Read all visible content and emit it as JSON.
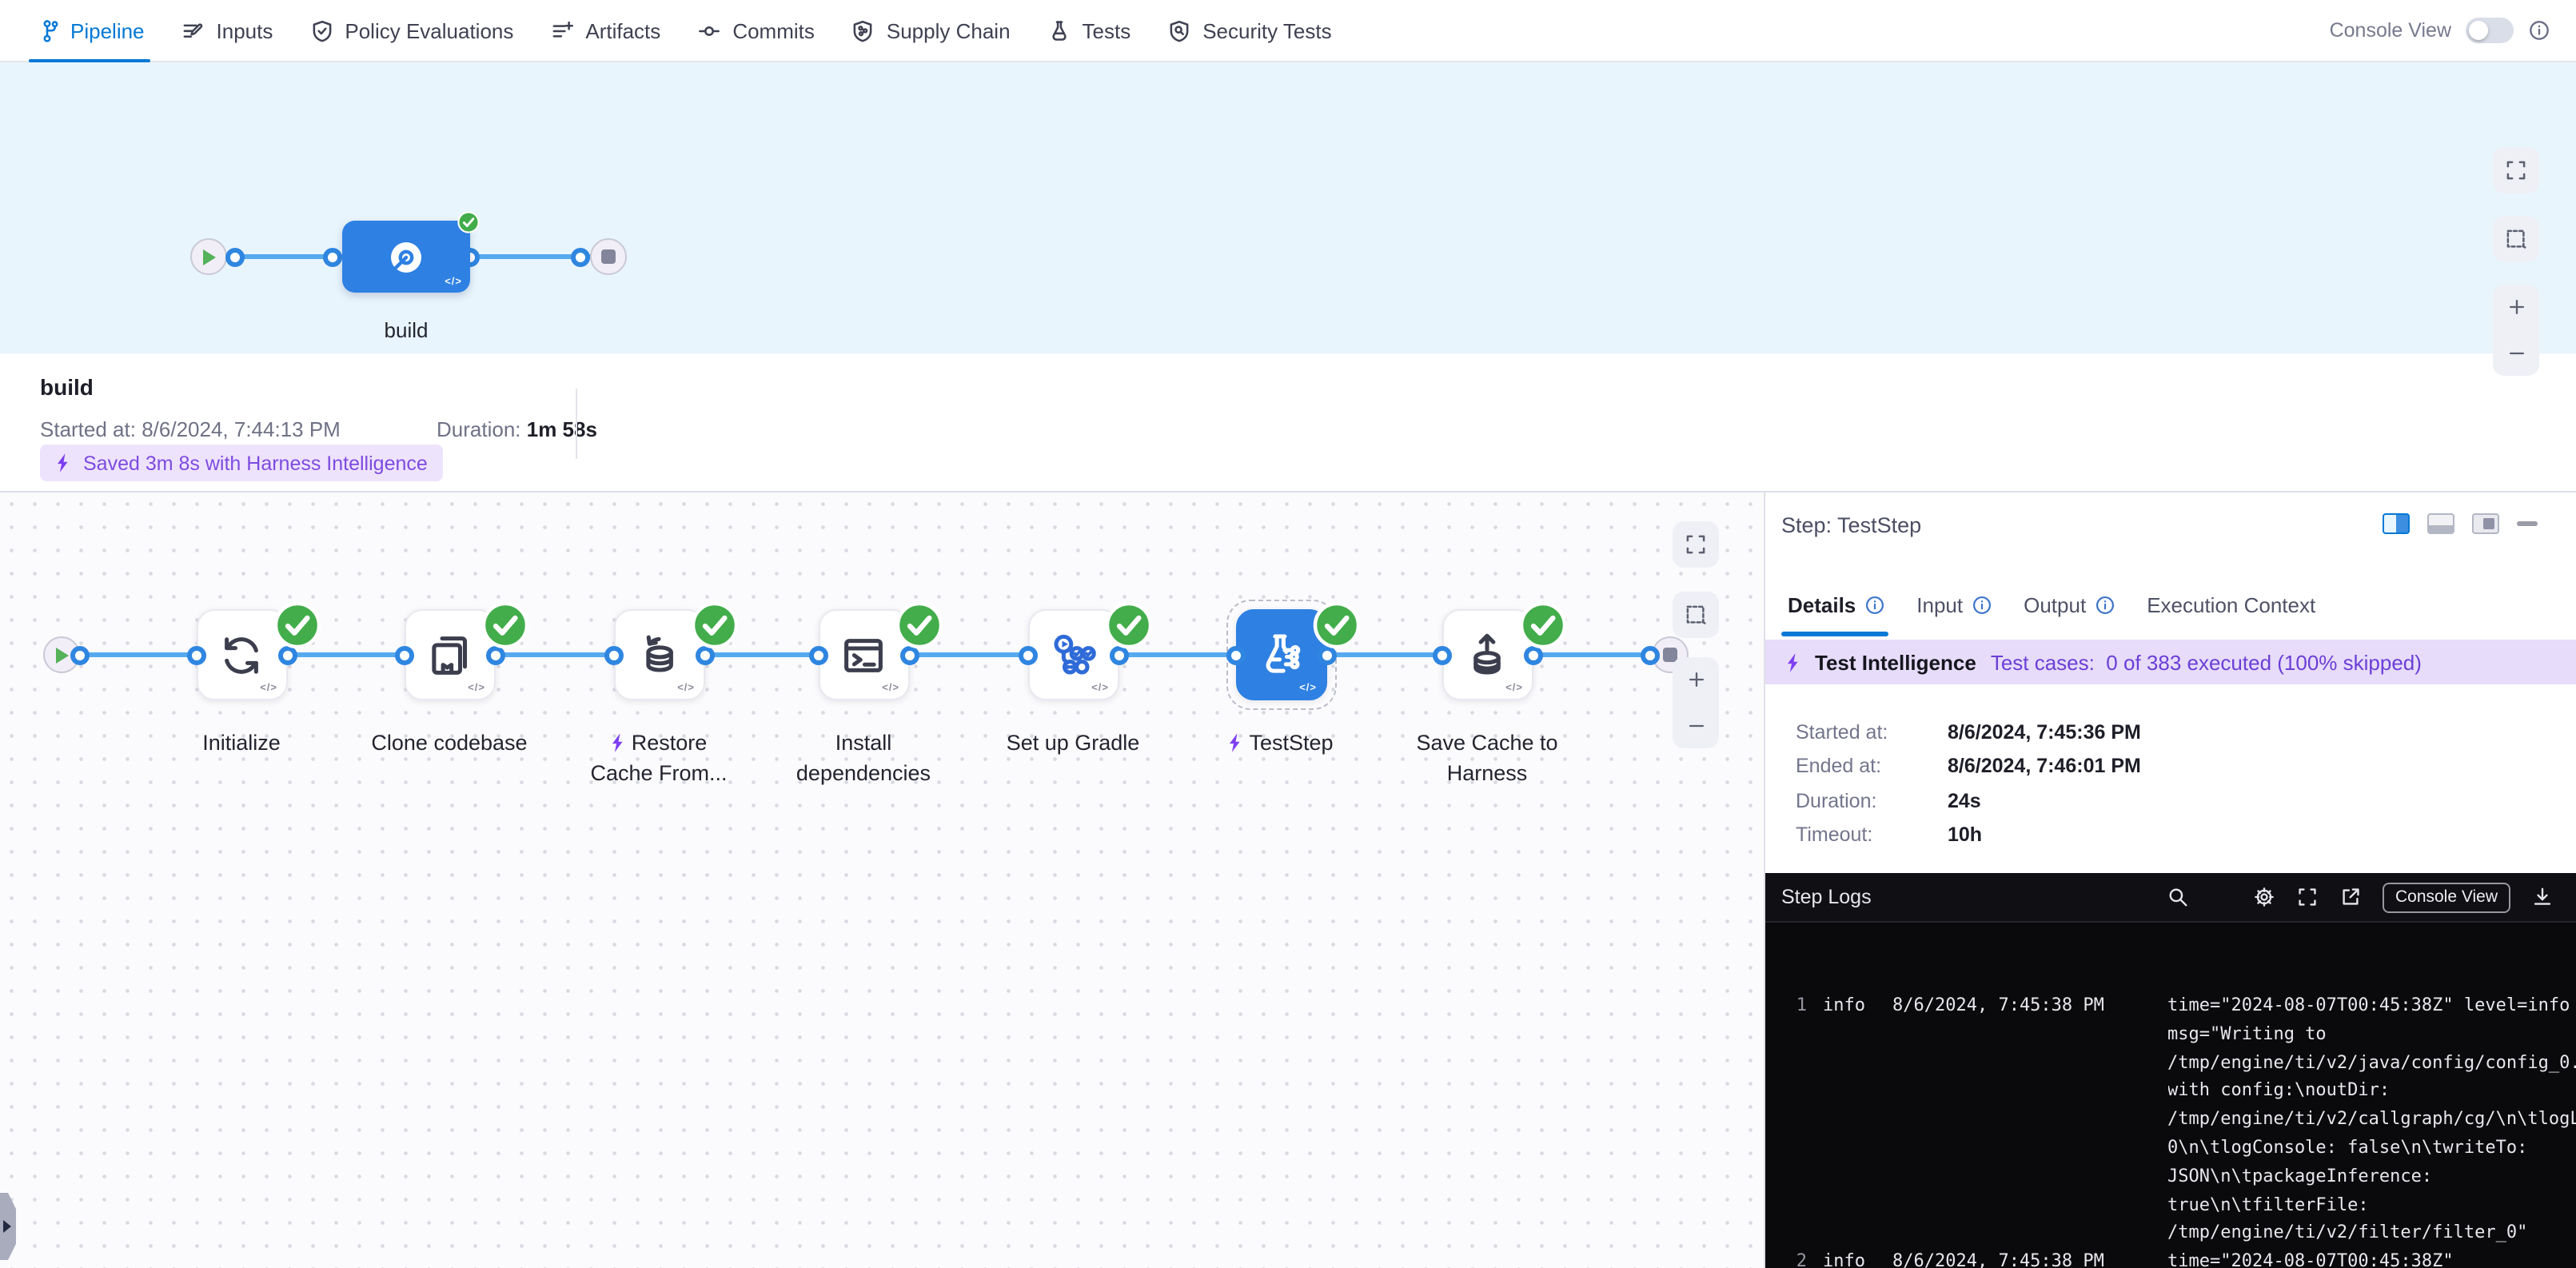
{
  "colors": {
    "accent_blue": "#0278d5",
    "node_blue": "#2e80e3",
    "success_green": "#42ad4a",
    "intelligence_purple": "#7d4be0"
  },
  "nav": {
    "tabs": [
      {
        "label": "Pipeline",
        "icon": "pipeline-icon",
        "active": true
      },
      {
        "label": "Inputs",
        "icon": "inputs-icon",
        "active": false
      },
      {
        "label": "Policy Evaluations",
        "icon": "policy-evaluations-icon",
        "active": false
      },
      {
        "label": "Artifacts",
        "icon": "artifacts-icon",
        "active": false
      },
      {
        "label": "Commits",
        "icon": "commits-icon",
        "active": false
      },
      {
        "label": "Supply Chain",
        "icon": "supply-chain-icon",
        "active": false
      },
      {
        "label": "Tests",
        "icon": "tests-icon",
        "active": false
      },
      {
        "label": "Security Tests",
        "icon": "security-tests-icon",
        "active": false
      }
    ],
    "console_view": {
      "label": "Console View",
      "enabled": false
    }
  },
  "stage_graph": {
    "stage_label": "build",
    "stage_status": "success",
    "code_mark": "</>"
  },
  "stage_summary": {
    "title": "build",
    "started_label": "Started at:",
    "started_value": "8/6/2024, 7:44:13 PM",
    "duration_label": "Duration:",
    "duration_value": "1m 58s",
    "savings_badge": "Saved 3m 8s with Harness Intelligence"
  },
  "step_graph": {
    "code_mark": "</>",
    "steps": [
      {
        "lines": [
          "Initialize"
        ],
        "icon": "initialize-icon",
        "bolt": false,
        "selected": false
      },
      {
        "lines": [
          "Clone codebase"
        ],
        "icon": "clone-codebase-icon",
        "bolt": false,
        "selected": false
      },
      {
        "lines": [
          "Restore",
          "Cache From..."
        ],
        "icon": "cache-restore-icon",
        "bolt": true,
        "selected": false
      },
      {
        "lines": [
          "Install",
          "dependencies"
        ],
        "icon": "terminal-icon",
        "bolt": false,
        "selected": false
      },
      {
        "lines": [
          "Set up Gradle"
        ],
        "icon": "gradle-plugin-icon",
        "bolt": false,
        "selected": false,
        "icon_color": "blue"
      },
      {
        "lines": [
          "TestStep"
        ],
        "icon": "test-step-icon",
        "bolt": true,
        "selected": true
      },
      {
        "lines": [
          "Save Cache to",
          "Harness"
        ],
        "icon": "cache-save-icon",
        "bolt": false,
        "selected": false
      }
    ]
  },
  "step_panel": {
    "title": "Step: TestStep",
    "tabs": [
      {
        "label": "Details",
        "info": true,
        "active": true
      },
      {
        "label": "Input",
        "info": true,
        "active": false
      },
      {
        "label": "Output",
        "info": true,
        "active": false
      },
      {
        "label": "Execution Context",
        "info": false,
        "active": false
      }
    ],
    "ti_banner": {
      "title": "Test Intelligence",
      "detail": "Test cases:  0 of 383 executed (100% skipped)"
    },
    "details": [
      {
        "label": "Started at:",
        "value": "8/6/2024, 7:45:36 PM"
      },
      {
        "label": "Ended at:",
        "value": "8/6/2024, 7:46:01 PM"
      },
      {
        "label": "Duration:",
        "value": "24s"
      },
      {
        "label": "Timeout:",
        "value": "10h"
      }
    ],
    "logs": {
      "title": "Step Logs",
      "console_view_label": "Console View",
      "rows": [
        {
          "num": "1",
          "level": "info",
          "time": "8/6/2024, 7:45:38 PM",
          "lines": [
            "time=\"2024-08-07T00:45:38Z\" level=info",
            "msg=\"Writing to",
            "/tmp/engine/ti/v2/java/config/config_0.",
            "with config:\\noutDir:",
            "/tmp/engine/ti/v2/callgraph/cg/\\n\\tlogL",
            "0\\n\\tlogConsole: false\\n\\twriteTo:",
            "JSON\\n\\tpackageInference:",
            "true\\n\\tfilterFile:",
            "/tmp/engine/ti/v2/filter/filter_0\""
          ]
        },
        {
          "num": "2",
          "level": "info",
          "time": "8/6/2024, 7:45:38 PM",
          "lines": [
            "time=\"2024-08-07T00:45:38Z\""
          ]
        }
      ]
    }
  }
}
